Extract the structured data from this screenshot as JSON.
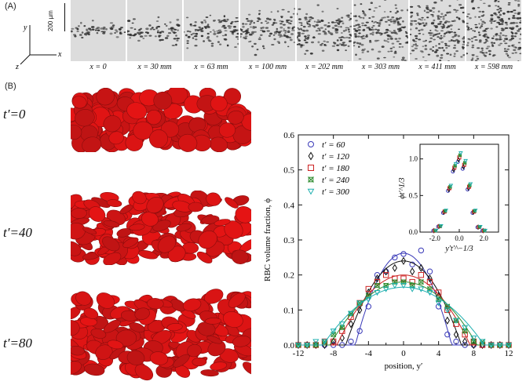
{
  "panel_a": {
    "label": "(A)",
    "scale_label": "200 µm",
    "axis_x": "x",
    "axis_y": "y",
    "axis_z": "z",
    "frames": [
      {
        "label": "x = 0",
        "spread": 0.15
      },
      {
        "label": "x = 30 mm",
        "spread": 0.22
      },
      {
        "label": "x = 63 mm",
        "spread": 0.3
      },
      {
        "label": "x = 100 mm",
        "spread": 0.36
      },
      {
        "label": "x = 202 mm",
        "spread": 0.45
      },
      {
        "label": "x = 303 mm",
        "spread": 0.52
      },
      {
        "label": "x = 411 mm",
        "spread": 0.58
      },
      {
        "label": "x = 598 mm",
        "spread": 0.64
      }
    ]
  },
  "panel_b": {
    "label": "(B)",
    "snapshots": [
      {
        "label": "t′=0"
      },
      {
        "label": "t′=40"
      },
      {
        "label": "t′=80"
      }
    ]
  },
  "chart_data": [
    {
      "type": "scatter",
      "xlabel": "position, y′",
      "ylabel": "RBC volume fraction, ϕ",
      "xlim": [
        -12,
        12
      ],
      "ylim": [
        0,
        0.6
      ],
      "xticks": [
        "-12",
        "-8",
        "-4",
        "0",
        "4",
        "8",
        "12"
      ],
      "yticks": [
        "0.0",
        "0.1",
        "0.2",
        "0.3",
        "0.4",
        "0.5",
        "0.6"
      ],
      "legend_position": "top-left",
      "x": [
        -12,
        -11,
        -10,
        -9,
        -8,
        -7,
        -6,
        -5,
        -4,
        -3,
        -2,
        -1,
        0,
        1,
        2,
        3,
        4,
        5,
        6,
        7,
        8,
        9,
        10,
        11,
        12
      ],
      "series": [
        {
          "name": "t′ = 60",
          "marker": "circle",
          "color": "#3a3ab8",
          "values": [
            0,
            0,
            0,
            0,
            0,
            0,
            0.01,
            0.04,
            0.11,
            0.2,
            0.21,
            0.25,
            0.26,
            0.23,
            0.27,
            0.21,
            0.11,
            0.03,
            0.01,
            0,
            0,
            0,
            0,
            0,
            0
          ],
          "fit_peak": 0.262,
          "fit_halfwidth": 5.5
        },
        {
          "name": "t′ = 120",
          "marker": "diamond",
          "color": "#111111",
          "values": [
            0,
            0,
            0,
            0,
            0.01,
            0.02,
            0.06,
            0.1,
            0.15,
            0.19,
            0.21,
            0.22,
            0.24,
            0.21,
            0.22,
            0.19,
            0.14,
            0.07,
            0.03,
            0.01,
            0,
            0,
            0,
            0,
            0
          ],
          "fit_peak": 0.24,
          "fit_halfwidth": 6.6
        },
        {
          "name": "t′ = 180",
          "marker": "square",
          "color": "#cc2222",
          "values": [
            0,
            0,
            0,
            0.01,
            0.01,
            0.04,
            0.08,
            0.12,
            0.16,
            0.18,
            0.2,
            0.19,
            0.19,
            0.18,
            0.2,
            0.18,
            0.15,
            0.1,
            0.06,
            0.03,
            0.01,
            0,
            0,
            0,
            0
          ],
          "fit_peak": 0.2,
          "fit_halfwidth": 7.6
        },
        {
          "name": "t′ = 240",
          "marker": "star",
          "color": "#2e8b2e",
          "values": [
            0,
            0,
            0,
            0.01,
            0.03,
            0.05,
            0.09,
            0.12,
            0.14,
            0.17,
            0.17,
            0.18,
            0.18,
            0.17,
            0.18,
            0.16,
            0.13,
            0.11,
            0.07,
            0.04,
            0.01,
            0.01,
            0,
            0,
            0
          ],
          "fit_peak": 0.18,
          "fit_halfwidth": 8.4
        },
        {
          "name": "t′ = 300",
          "marker": "triangle",
          "color": "#20b0b0",
          "values": [
            0,
            0,
            0.01,
            0.01,
            0.04,
            0.06,
            0.09,
            0.12,
            0.13,
            0.15,
            0.16,
            0.17,
            0.17,
            0.16,
            0.16,
            0.15,
            0.12,
            0.1,
            0.07,
            0.05,
            0.02,
            0.01,
            0,
            0,
            0
          ],
          "fit_peak": 0.165,
          "fit_halfwidth": 9.2
        }
      ]
    },
    {
      "type": "scatter",
      "xlabel": "y′t′^−1/3",
      "ylabel": "ϕt′^1/3",
      "xlim": [
        -3.2,
        3.2
      ],
      "ylim": [
        0,
        1.2
      ],
      "xticks": [
        "-2.0",
        "0.0",
        "2.0"
      ],
      "yticks": [
        "0.0",
        "0.5",
        "1.0"
      ],
      "x": [
        -2.0,
        -1.6,
        -1.2,
        -0.8,
        -0.4,
        0,
        0.4,
        0.8,
        1.2,
        1.6,
        2.0
      ],
      "values": [
        0.02,
        0.08,
        0.28,
        0.6,
        0.88,
        1.02,
        0.92,
        0.62,
        0.28,
        0.07,
        0.02
      ]
    }
  ]
}
